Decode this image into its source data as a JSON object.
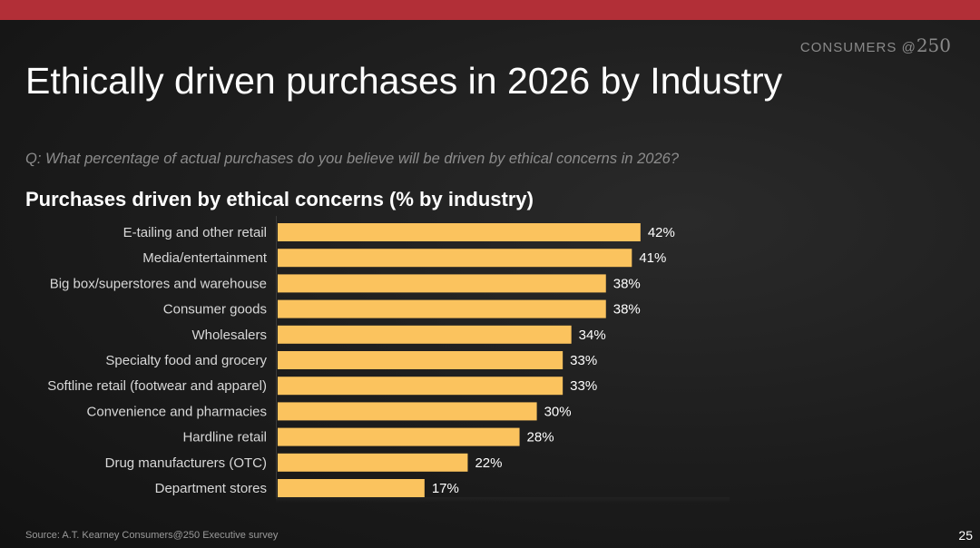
{
  "brand": {
    "text": "CONSUMERS",
    "at": "@",
    "num": "250"
  },
  "title": "Ethically driven purchases in 2026 by Industry",
  "question": "Q: What percentage of actual purchases do you believe will be driven by ethical concerns in 2026?",
  "source": "Source: A.T. Kearney Consumers@250 Executive survey",
  "page_number": "25",
  "colors": {
    "accent_bar": "#b22f37",
    "bar_fill": "#fbc35e",
    "background": "#1c1c1c"
  },
  "chart_data": {
    "type": "bar",
    "orientation": "horizontal",
    "title": "Purchases driven by ethical concerns (% by industry)",
    "categories": [
      "E-tailing and other retail",
      "Media/entertainment",
      "Big box/superstores and warehouse",
      "Consumer goods",
      "Wholesalers",
      "Specialty food and grocery",
      "Softline retail (footwear and apparel)",
      "Convenience and pharmacies",
      "Hardline retail",
      "Drug manufacturers (OTC)",
      "Department stores"
    ],
    "values": [
      42,
      41,
      38,
      38,
      34,
      33,
      33,
      30,
      28,
      22,
      17
    ],
    "value_labels": [
      "42%",
      "41%",
      "38%",
      "38%",
      "34%",
      "33%",
      "33%",
      "30%",
      "28%",
      "22%",
      "17%"
    ],
    "unit": "%",
    "xlim": [
      0,
      100
    ],
    "grid": false,
    "legend": "none"
  }
}
